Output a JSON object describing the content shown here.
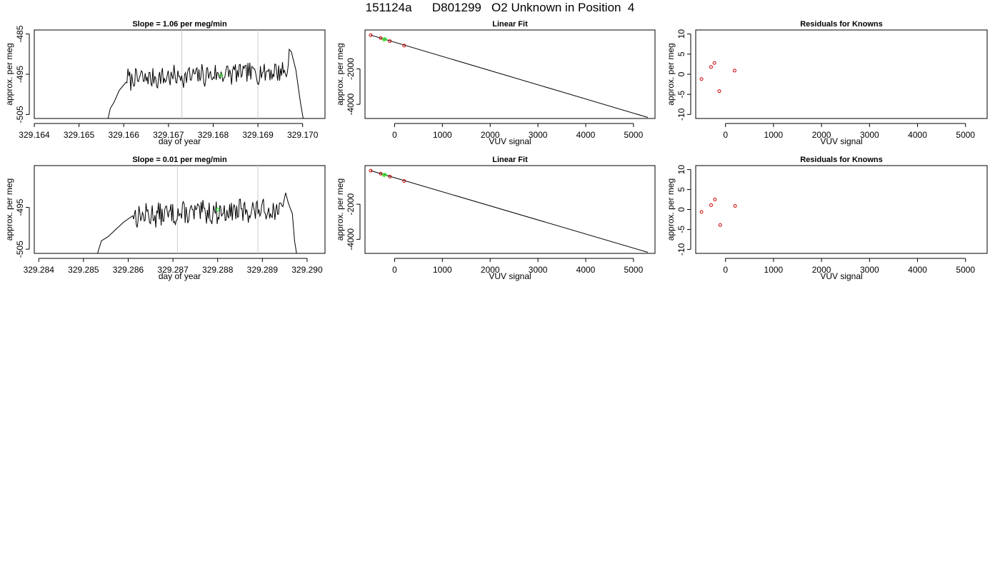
{
  "page": {
    "title": "151124a      D801299   O2 Unknown in Position  4"
  },
  "chart_data": [
    {
      "type": "line",
      "title": "Slope =  1.06  per meg/min",
      "xlabel": "day of year",
      "ylabel": "approx. per meg",
      "xlim": [
        329.164,
        329.1705
      ],
      "ylim": [
        -506,
        -484
      ],
      "xticks": [
        "329.164",
        "329.165",
        "329.166",
        "329.167",
        "329.168",
        "329.169",
        "329.170"
      ],
      "xtick_values": [
        329.164,
        329.165,
        329.166,
        329.167,
        329.168,
        329.169,
        329.17
      ],
      "yticks": [
        "-485",
        "-495",
        "-505"
      ],
      "ytick_values": [
        -485,
        -495,
        -505
      ],
      "vlines": [
        329.1673,
        329.169
      ],
      "trace": {
        "x_start": 329.16565,
        "x_end": 329.17002,
        "baseline": -496.3,
        "seed": 7,
        "start": [
          [
            329.16565,
            -506.0
          ],
          [
            329.1657,
            -503.5
          ],
          [
            329.16578,
            -502.0
          ],
          [
            329.1659,
            -499.0
          ],
          [
            329.16605,
            -497.0
          ]
        ],
        "end": [
          [
            329.1697,
            -488.8
          ],
          [
            329.16975,
            -489.5
          ],
          [
            329.16985,
            -494.0
          ],
          [
            329.16995,
            -502.0
          ],
          [
            329.17002,
            -506.5
          ]
        ]
      },
      "green_point": {
        "x": 329.16818,
        "y": -495.3
      },
      "colors": {
        "line": "#000000",
        "vline": "#cccccc",
        "green": "#33ee33"
      }
    },
    {
      "type": "scatter",
      "title": "Linear Fit",
      "xlabel": "VUV signal",
      "ylabel": "approx. per meg",
      "xlim": [
        -620,
        5450
      ],
      "ylim": [
        -4800,
        200
      ],
      "xticks": [
        "0",
        "1000",
        "2000",
        "3000",
        "4000",
        "5000"
      ],
      "xtick_values": [
        0,
        1000,
        2000,
        3000,
        4000,
        5000
      ],
      "yticks": [
        "-2000",
        "-4000"
      ],
      "ytick_values": [
        -2000,
        -4000
      ],
      "fit_line": [
        [
          -500,
          -90
        ],
        [
          5300,
          -4740
        ]
      ],
      "knowns": [
        [
          -500,
          -90
        ],
        [
          -290,
          -260
        ],
        [
          -220,
          -340
        ],
        [
          -100,
          -430
        ],
        [
          200,
          -680
        ]
      ],
      "unknowns": [
        [
          -220,
          -330
        ],
        [
          -200,
          -320
        ]
      ],
      "colors": {
        "known": "#cc0000",
        "unknown": "#33ee33",
        "line": "#000000"
      }
    },
    {
      "type": "scatter",
      "title": "Residuals for Knowns",
      "xlabel": "VUV signal",
      "ylabel": "approx. per meg",
      "xlim": [
        -620,
        5450
      ],
      "ylim": [
        -11,
        11
      ],
      "xticks": [
        "0",
        "1000",
        "2000",
        "3000",
        "4000",
        "5000"
      ],
      "xtick_values": [
        0,
        1000,
        2000,
        3000,
        4000,
        5000
      ],
      "yticks": [
        "10",
        "5",
        "0",
        "-5",
        "-10"
      ],
      "ytick_values": [
        10,
        5,
        0,
        -5,
        -10
      ],
      "knowns": [
        [
          -500,
          -1.2
        ],
        [
          -300,
          1.8
        ],
        [
          -230,
          2.8
        ],
        [
          -130,
          -4.2
        ],
        [
          190,
          0.9
        ]
      ],
      "colors": {
        "known": "#cc0000"
      }
    },
    {
      "type": "line",
      "title": "Slope =  0.01  per meg/min",
      "xlabel": "day of year",
      "ylabel": "approx. per meg",
      "xlim": [
        329.2839,
        329.2904
      ],
      "ylim": [
        -506,
        -485
      ],
      "xticks": [
        "329.284",
        "329.285",
        "329.286",
        "329.287",
        "329.288",
        "329.289",
        "329.290"
      ],
      "xtick_values": [
        329.284,
        329.285,
        329.286,
        329.287,
        329.288,
        329.289,
        329.29
      ],
      "yticks": [
        "-495",
        "-505"
      ],
      "ytick_values": [
        -495,
        -505
      ],
      "vlines": [
        329.2871,
        329.2889
      ],
      "trace": {
        "x_start": 329.2853,
        "x_end": 329.28977,
        "baseline": -497.0,
        "seed": 13,
        "start": [
          [
            329.2853,
            -506.5
          ],
          [
            329.2854,
            -503.0
          ],
          [
            329.28555,
            -502.0
          ],
          [
            329.2857,
            -500.5
          ],
          [
            329.2859,
            -498.5
          ],
          [
            329.2861,
            -497.0
          ]
        ],
        "end": [
          [
            329.28948,
            -493.5
          ],
          [
            329.28952,
            -491.5
          ],
          [
            329.28958,
            -494.0
          ],
          [
            329.28967,
            -496.5
          ],
          [
            329.28972,
            -503.0
          ],
          [
            329.28977,
            -506.5
          ]
        ]
      },
      "green_point": {
        "x": 329.288,
        "y": -495.5
      },
      "colors": {
        "line": "#000000",
        "vline": "#cccccc",
        "green": "#33ee33"
      }
    },
    {
      "type": "scatter",
      "title": "Linear Fit",
      "xlabel": "VUV signal",
      "ylabel": "approx. per meg",
      "xlim": [
        -620,
        5450
      ],
      "ylim": [
        -4800,
        200
      ],
      "xticks": [
        "0",
        "1000",
        "2000",
        "3000",
        "4000",
        "5000"
      ],
      "xtick_values": [
        0,
        1000,
        2000,
        3000,
        4000,
        5000
      ],
      "yticks": [
        "-2000",
        "-4000"
      ],
      "ytick_values": [
        -2000,
        -4000
      ],
      "fit_line": [
        [
          -500,
          -90
        ],
        [
          5300,
          -4740
        ]
      ],
      "knowns": [
        [
          -500,
          -90
        ],
        [
          -290,
          -260
        ],
        [
          -220,
          -340
        ],
        [
          -100,
          -430
        ],
        [
          200,
          -680
        ]
      ],
      "unknowns": [
        [
          -220,
          -330
        ],
        [
          -200,
          -320
        ]
      ],
      "colors": {
        "known": "#cc0000",
        "unknown": "#33ee33",
        "line": "#000000"
      }
    },
    {
      "type": "scatter",
      "title": "Residuals for Knowns",
      "xlabel": "VUV signal",
      "ylabel": "approx. per meg",
      "xlim": [
        -620,
        5450
      ],
      "ylim": [
        -11,
        11
      ],
      "xticks": [
        "0",
        "1000",
        "2000",
        "3000",
        "4000",
        "5000"
      ],
      "xtick_values": [
        0,
        1000,
        2000,
        3000,
        4000,
        5000
      ],
      "yticks": [
        "10",
        "5",
        "0",
        "-5",
        "-10"
      ],
      "ytick_values": [
        10,
        5,
        0,
        -5,
        -10
      ],
      "knowns": [
        [
          -500,
          -0.6
        ],
        [
          -300,
          1.1
        ],
        [
          -220,
          2.5
        ],
        [
          -110,
          -3.9
        ],
        [
          200,
          0.9
        ]
      ],
      "colors": {
        "known": "#cc0000"
      }
    }
  ]
}
